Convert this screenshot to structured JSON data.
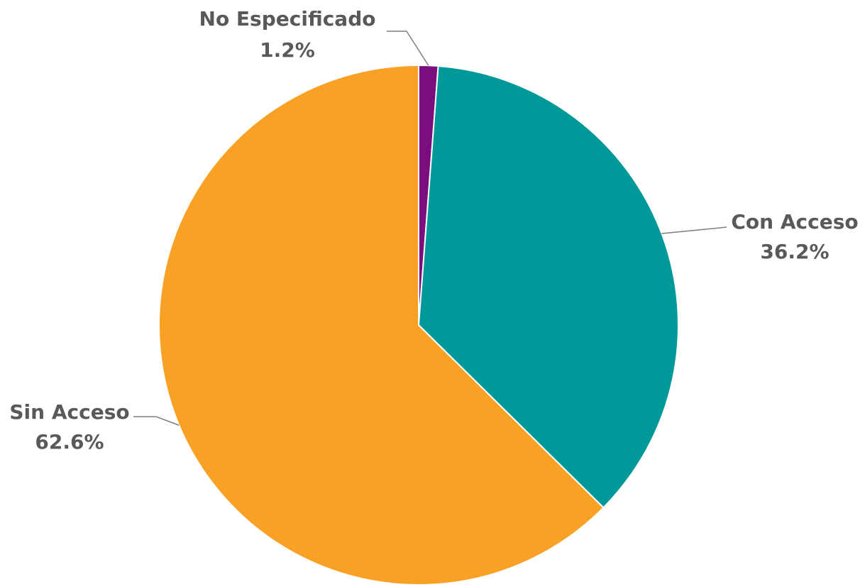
{
  "chart_data": {
    "type": "pie",
    "title": "",
    "slices": [
      {
        "label": "No Especificado",
        "value": 1.2,
        "value_label": "1.2%",
        "color": "#7B0D7E"
      },
      {
        "label": "Con Acceso",
        "value": 36.2,
        "value_label": "36.2%",
        "color": "#009999"
      },
      {
        "label": "Sin Acceso",
        "value": 62.6,
        "value_label": "62.6%",
        "color": "#F9A125"
      }
    ],
    "start_angle": "12 o'clock",
    "direction": "clockwise",
    "legend": "none",
    "labels": "outside with leader lines"
  }
}
